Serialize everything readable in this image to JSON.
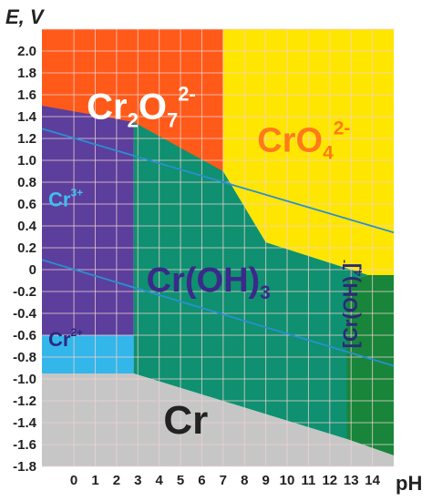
{
  "chart_data": {
    "type": "area",
    "title": "",
    "ylabel": "E, V",
    "xlabel": "pH",
    "xlim": [
      -1.5,
      15
    ],
    "ylim": [
      -1.8,
      2.2
    ],
    "x_ticks": [
      "0",
      "1",
      "2",
      "3",
      "4",
      "5",
      "6",
      "7",
      "8",
      "9",
      "10",
      "11",
      "12",
      "13",
      "14"
    ],
    "y_ticks": [
      "2.0",
      "1.8",
      "1.6",
      "1.4",
      "1.2",
      "1.0",
      "0.8",
      "0.6",
      "0.4",
      "0.2",
      "0",
      "-0.2",
      "-0.4",
      "-0.6",
      "-0.8",
      "-1.0",
      "-1.2",
      "-1.4",
      "-1.6",
      "-1.8"
    ],
    "grid": true,
    "regions": [
      {
        "name": "Cr2O7^2-",
        "base": "Cr",
        "sub": "2",
        "base2": "O",
        "sub2": "7",
        "sup": "2-",
        "color": "#ff5a1a",
        "text_color": "#ffffff",
        "polygon": [
          [
            -1.5,
            2.2
          ],
          [
            7,
            2.2
          ],
          [
            7,
            0.9
          ],
          [
            -1.5,
            1.5
          ]
        ]
      },
      {
        "name": "CrO4^2-",
        "base": "CrO",
        "sub": "4",
        "sup": "2-",
        "color": "#ffe600",
        "text_color": "#ff7a1a",
        "polygon": [
          [
            7,
            2.2
          ],
          [
            15,
            2.2
          ],
          [
            15,
            -0.05
          ],
          [
            13.8,
            -0.05
          ],
          [
            9,
            0.25
          ],
          [
            7,
            0.9
          ]
        ]
      },
      {
        "name": "Cr3+",
        "base": "Cr",
        "sup": "3+",
        "color": "#5c3f9c",
        "text_color": "#3fbff0",
        "polygon": [
          [
            -1.5,
            1.5
          ],
          [
            2.8,
            1.35
          ],
          [
            2.8,
            -0.6
          ],
          [
            -1.5,
            -0.6
          ]
        ]
      },
      {
        "name": "Cr(OH)3",
        "base": "Cr(OH)",
        "sub": "3",
        "color": "#0f9070",
        "text_color": "#3a2a8a",
        "polygon": [
          [
            2.8,
            1.35
          ],
          [
            7,
            0.9
          ],
          [
            9,
            0.25
          ],
          [
            13.8,
            -0.05
          ],
          [
            12.8,
            -0.1
          ],
          [
            12.8,
            -1.55
          ],
          [
            2.8,
            -0.95
          ]
        ]
      },
      {
        "name": "[Cr(OH)4]-",
        "base": "[Cr(OH)",
        "sub": "4",
        "close": "]",
        "sup": "-",
        "color": "#18853a",
        "text_color": "#2a2a7a",
        "polygon": [
          [
            12.8,
            -0.1
          ],
          [
            13.8,
            -0.05
          ],
          [
            15,
            -0.05
          ],
          [
            15,
            -1.7
          ],
          [
            12.8,
            -1.55
          ]
        ]
      },
      {
        "name": "Cr2+",
        "base": "Cr",
        "sup": "2+",
        "color": "#33b6ea",
        "text_color": "#2a2a80",
        "polygon": [
          [
            -1.5,
            -0.6
          ],
          [
            2.8,
            -0.6
          ],
          [
            2.8,
            -0.95
          ],
          [
            -1.5,
            -0.95
          ]
        ]
      },
      {
        "name": "Cr",
        "base": "Cr",
        "color": "#c6c6c6",
        "text_color": "#222222",
        "polygon": [
          [
            -1.5,
            -0.95
          ],
          [
            2.8,
            -0.95
          ],
          [
            12.8,
            -1.55
          ],
          [
            15,
            -1.7
          ],
          [
            15,
            -1.8
          ],
          [
            -1.5,
            -1.8
          ]
        ]
      }
    ],
    "lines": [
      {
        "name": "water-upper",
        "color": "#2a8fd0",
        "points": [
          [
            -1.5,
            1.29
          ],
          [
            15,
            0.34
          ]
        ]
      },
      {
        "name": "water-lower",
        "color": "#2a8fd0",
        "points": [
          [
            -1.5,
            0.09
          ],
          [
            15,
            -0.88
          ]
        ]
      }
    ],
    "labels": [
      {
        "region": "Cr2O7^2-",
        "x": 0.6,
        "y": 1.38,
        "size": 40
      },
      {
        "region": "CrO4^2-",
        "x": 8.6,
        "y": 1.08,
        "size": 38
      },
      {
        "region": "Cr3+",
        "x": -1.2,
        "y": 0.58,
        "size": 22
      },
      {
        "region": "Cr(OH)3",
        "x": 3.4,
        "y": -0.2,
        "size": 38
      },
      {
        "region": "[Cr(OH)4]-",
        "x": 13.3,
        "y": -0.72,
        "size": 22,
        "rotate": -90
      },
      {
        "region": "Cr2+",
        "x": -1.2,
        "y": -0.7,
        "size": 22
      },
      {
        "region": "Cr",
        "x": 4.2,
        "y": -1.5,
        "size": 44
      }
    ]
  }
}
